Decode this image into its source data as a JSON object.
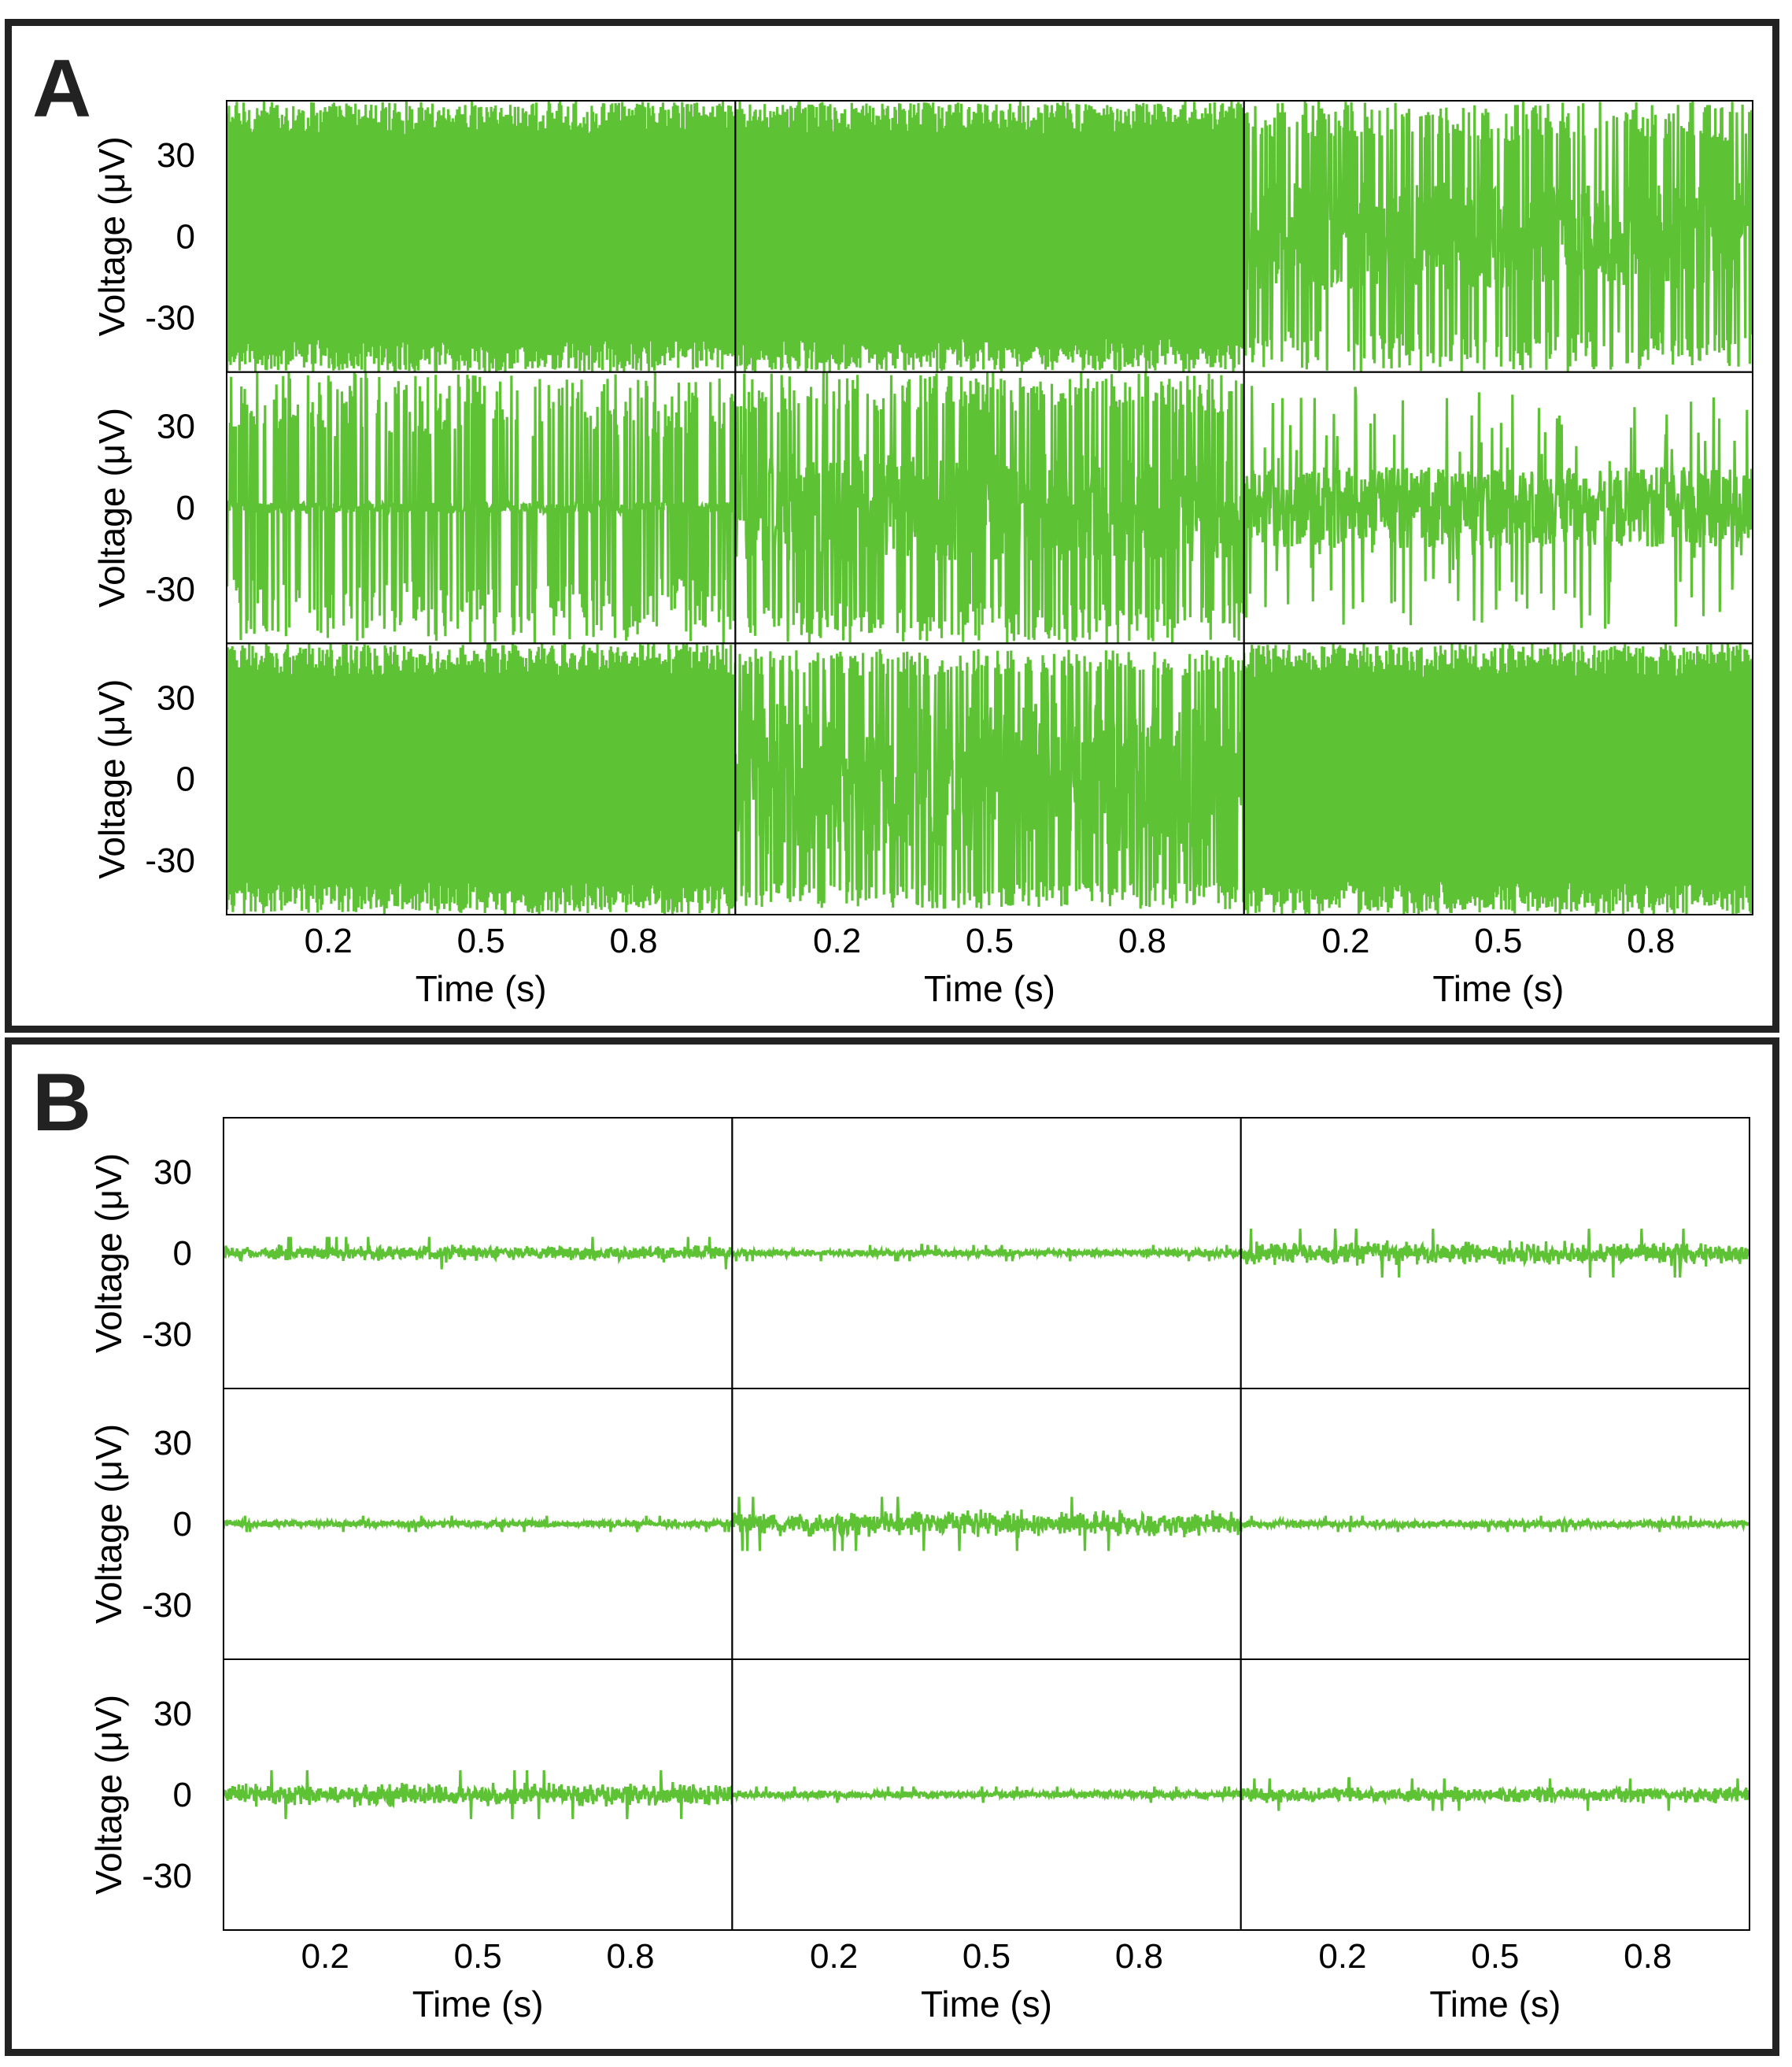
{
  "panels": [
    {
      "label": "A"
    },
    {
      "label": "B"
    }
  ],
  "colors": {
    "trace": "#5ec235",
    "axes": "#000000",
    "frame": "#222222"
  },
  "chart_data": [
    {
      "panel": "A",
      "type": "line",
      "grid_rows": 3,
      "grid_cols": 3,
      "xlabel": "Time (s)",
      "ylabel": "Voltage (μV)",
      "xlim": [
        0,
        1
      ],
      "ylim": [
        -50,
        50
      ],
      "xticks": [
        0.2,
        0.5,
        0.8
      ],
      "xtick_labels": [
        "0.2",
        "0.5",
        "0.8"
      ],
      "yticks": [
        30,
        0,
        -30
      ],
      "ytick_labels": [
        "30",
        "0",
        "-30"
      ],
      "grid": false,
      "traces": [
        {
          "row": 0,
          "col": 0,
          "amplitude": 50,
          "clipped": true,
          "style": "dense"
        },
        {
          "row": 0,
          "col": 1,
          "amplitude": 50,
          "clipped": true,
          "style": "dense"
        },
        {
          "row": 0,
          "col": 2,
          "amplitude": 50,
          "clipped": true,
          "style": "spiky",
          "band": 20
        },
        {
          "row": 1,
          "col": 0,
          "amplitude": 50,
          "clipped": true,
          "style": "spiky",
          "band": 2
        },
        {
          "row": 1,
          "col": 1,
          "amplitude": 50,
          "clipped": true,
          "style": "spiky",
          "band": 20
        },
        {
          "row": 1,
          "col": 2,
          "amplitude": 45,
          "clipped": false,
          "style": "noisy",
          "band": 15
        },
        {
          "row": 2,
          "col": 0,
          "amplitude": 50,
          "clipped": true,
          "style": "dense"
        },
        {
          "row": 2,
          "col": 1,
          "amplitude": 48,
          "clipped": false,
          "style": "spiky",
          "band": 28
        },
        {
          "row": 2,
          "col": 2,
          "amplitude": 50,
          "clipped": true,
          "style": "dense"
        }
      ]
    },
    {
      "panel": "B",
      "type": "line",
      "grid_rows": 3,
      "grid_cols": 3,
      "xlabel": "Time (s)",
      "ylabel": "Voltage (μV)",
      "xlim": [
        0,
        1
      ],
      "ylim": [
        -50,
        50
      ],
      "xticks": [
        0.2,
        0.5,
        0.8
      ],
      "xtick_labels": [
        "0.2",
        "0.5",
        "0.8"
      ],
      "yticks": [
        30,
        0,
        -30
      ],
      "ytick_labels": [
        "30",
        "0",
        "-30"
      ],
      "grid": false,
      "traces": [
        {
          "row": 0,
          "col": 0,
          "amplitude": 6,
          "clipped": false,
          "style": "baseline"
        },
        {
          "row": 0,
          "col": 1,
          "amplitude": 3,
          "clipped": false,
          "style": "baseline"
        },
        {
          "row": 0,
          "col": 2,
          "amplitude": 9,
          "clipped": false,
          "style": "baseline"
        },
        {
          "row": 1,
          "col": 0,
          "amplitude": 3,
          "clipped": false,
          "style": "baseline"
        },
        {
          "row": 1,
          "col": 1,
          "amplitude": 10,
          "clipped": false,
          "style": "baseline"
        },
        {
          "row": 1,
          "col": 2,
          "amplitude": 3,
          "clipped": false,
          "style": "baseline"
        },
        {
          "row": 2,
          "col": 0,
          "amplitude": 9,
          "clipped": false,
          "style": "baseline"
        },
        {
          "row": 2,
          "col": 1,
          "amplitude": 3,
          "clipped": false,
          "style": "baseline"
        },
        {
          "row": 2,
          "col": 2,
          "amplitude": 6,
          "clipped": false,
          "style": "baseline"
        }
      ]
    }
  ]
}
